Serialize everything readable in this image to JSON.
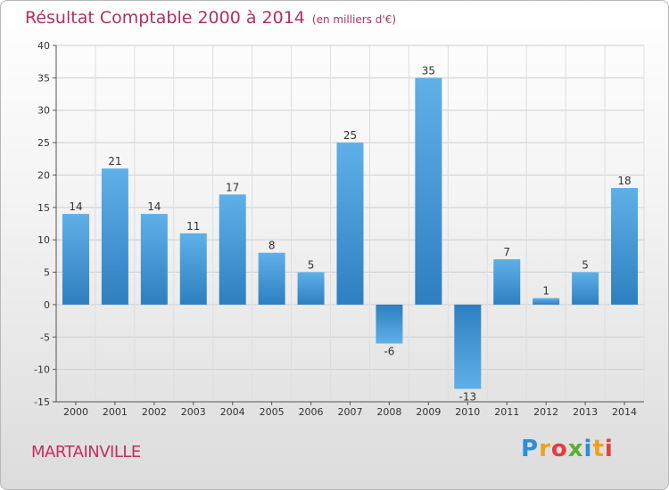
{
  "chart_data": {
    "type": "bar",
    "title": "Résultat Comptable 2000 à 2014",
    "subtitle": "(en milliers d'€)",
    "categories": [
      "2000",
      "2001",
      "2002",
      "2003",
      "2004",
      "2005",
      "2006",
      "2007",
      "2008",
      "2009",
      "2010",
      "2011",
      "2012",
      "2013",
      "2014"
    ],
    "values": [
      14,
      21,
      14,
      11,
      17,
      8,
      5,
      25,
      -6,
      35,
      -13,
      7,
      1,
      5,
      18
    ],
    "data_labels": [
      "14",
      "21",
      "14",
      "11",
      "17",
      "8",
      "5",
      "25",
      "-6",
      "35",
      "-13",
      "7",
      "1",
      "5",
      "18"
    ],
    "yticks": [
      "40",
      "35",
      "30",
      "25",
      "20",
      "15",
      "10",
      "5",
      "0",
      "-5",
      "-10",
      "-15"
    ],
    "ylim": [
      -15,
      40
    ],
    "xlabel": "",
    "ylabel": "",
    "grid": true,
    "bar_color": "#3a8fd0"
  },
  "commune": "MARTAINVILLE",
  "logo": {
    "text": "Proxiti",
    "letters": [
      "P",
      "r",
      "o",
      "x",
      "i",
      "t",
      "i"
    ],
    "colors": [
      "#2a8fd8",
      "#f0a020",
      "#e83c3c",
      "#58b030",
      "#2a8fd8",
      "#f0a020",
      "#e83c3c"
    ]
  }
}
